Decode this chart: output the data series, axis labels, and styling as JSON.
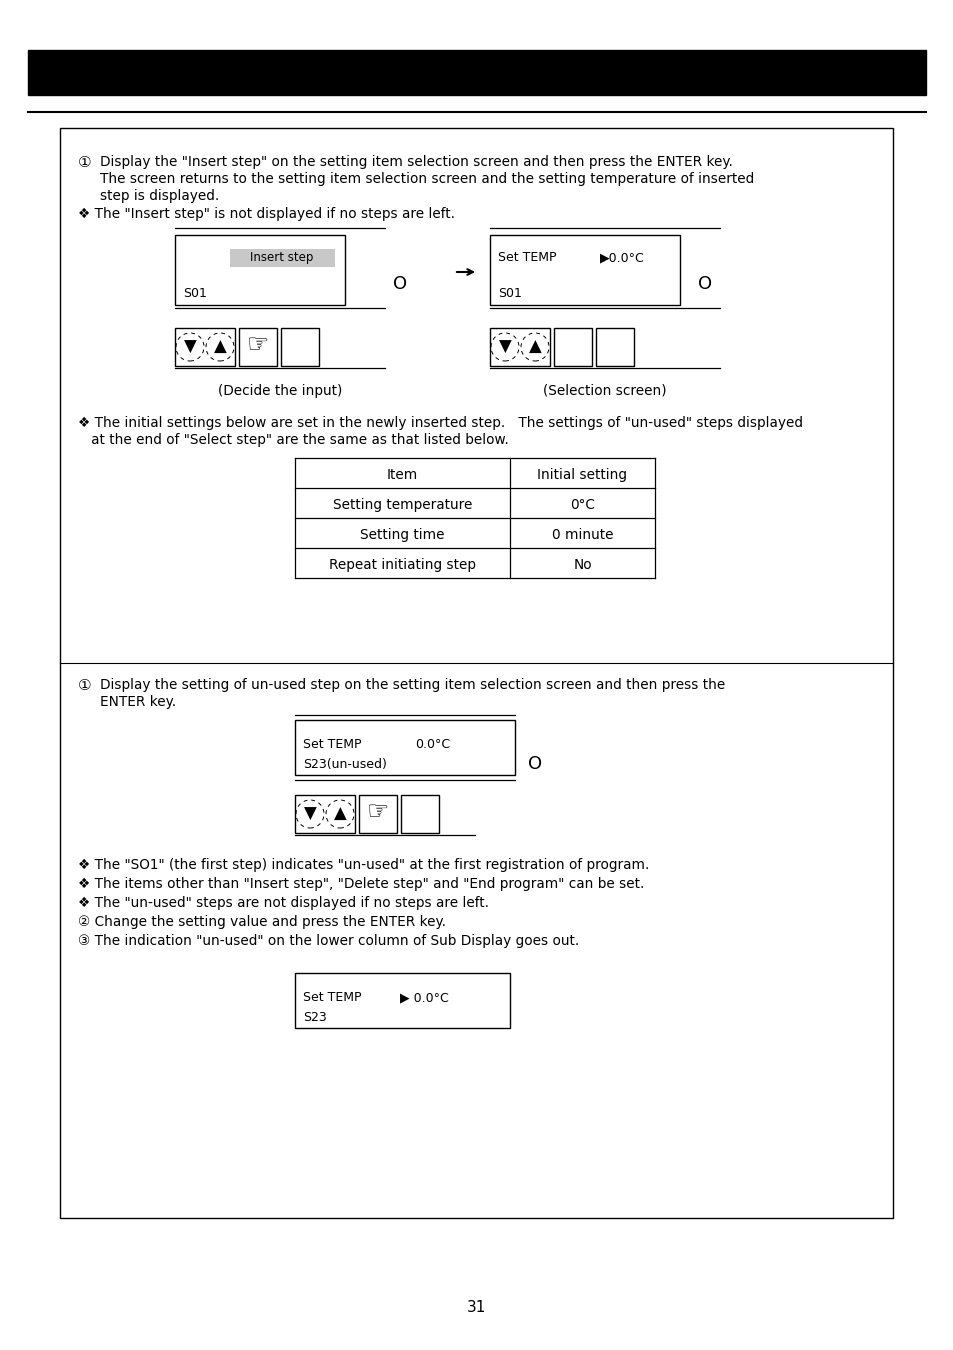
{
  "page_number": "31",
  "bg_color": "#ffffff",
  "section1": {
    "para1_line1": "Display the \"Insert step\" on the setting item selection screen and then press the ENTER key.",
    "para1_line2": "The screen returns to the setting item selection screen and the setting temperature of inserted",
    "para1_line3": "step is displayed.",
    "bullet1": "❖ The \"Insert step\" is not displayed if no steps are left.",
    "bullet2_line1": "❖ The initial settings below are set in the newly inserted step.   The settings of \"un-used\" steps displayed",
    "bullet2_line2": "   at the end of \"Select step\" are the same as that listed below.",
    "table_headers": [
      "Item",
      "Initial setting"
    ],
    "table_rows": [
      [
        "Setting temperature",
        "0°C"
      ],
      [
        "Setting time",
        "0 minute"
      ],
      [
        "Repeat initiating step",
        "No"
      ]
    ],
    "label_decide": "(Decide the input)",
    "label_select": "(Selection screen)"
  },
  "section2": {
    "para1_line1": "Display the setting of un-used step on the setting item selection screen and then press the",
    "para1_line2": "ENTER key.",
    "bullets": [
      "❖ The \"SO1\" (the first step) indicates \"un-used\" at the first registration of program.",
      "❖ The items other than \"Insert step\", \"Delete step\" and \"End program\" can be set.",
      "❖ The \"un-used\" steps are not displayed if no steps are left.",
      "② Change the setting value and press the ENTER key.",
      "③ The indication \"un-used\" on the lower column of Sub Display goes out."
    ]
  }
}
